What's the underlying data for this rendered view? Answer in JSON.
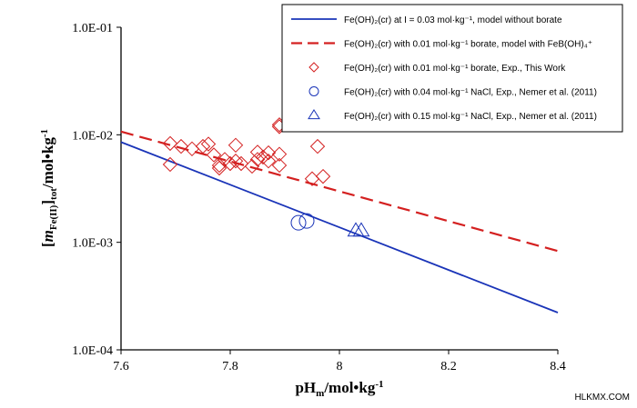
{
  "chart_data": {
    "type": "scatter",
    "x_axis": {
      "range": [
        7.6,
        8.4
      ],
      "ticks": [
        7.6,
        7.8,
        8.0,
        8.2,
        8.4
      ],
      "tick_labels": [
        "7.6",
        "7.8",
        "8",
        "8.2",
        "8.4"
      ],
      "label_main": "pH",
      "label_sub": "m",
      "label_rest": "/mol•kg",
      "label_sup": "-1"
    },
    "y_axis": {
      "scale": "log",
      "range": [
        0.0001,
        0.1
      ],
      "ticks": [
        0.0001,
        0.001,
        0.01,
        0.1
      ],
      "tick_labels": [
        "1.0E-04",
        "1.0E-03",
        "1.0E-02",
        "1.0E-01"
      ],
      "label_open": "[",
      "label_main": "m",
      "label_sub": "Fe(II)",
      "label_close": "]",
      "label_sub2": "tot",
      "label_rest": "/mol•kg",
      "label_sup": "-1"
    },
    "grid": false,
    "legend_position": "top-right",
    "series": [
      {
        "name": "Fe(OH)₂(cr) at I = 0.03 mol·kg⁻¹, model without borate",
        "kind": "line",
        "color": "#1a34b8",
        "dash": "solid",
        "points": [
          [
            7.6,
            0.00855
          ],
          [
            8.4,
            0.000222
          ]
        ]
      },
      {
        "name": "Fe(OH)₂(cr) with 0.01 mol·kg⁻¹ borate, model with FeB(OH)₄⁺",
        "kind": "line",
        "color": "#d42020",
        "dash": "dashed",
        "points": [
          [
            7.6,
            0.0107
          ],
          [
            8.4,
            0.00083
          ]
        ]
      },
      {
        "name": "Fe(OH)₂(cr) with 0.01 mol·kg⁻¹ borate, Exp., This Work",
        "kind": "scatter",
        "marker": "diamond",
        "color": "#d42020",
        "points": [
          [
            7.69,
            0.0083
          ],
          [
            7.69,
            0.0053
          ],
          [
            7.71,
            0.0078
          ],
          [
            7.73,
            0.0074
          ],
          [
            7.75,
            0.0078
          ],
          [
            7.76,
            0.0082
          ],
          [
            7.77,
            0.0065
          ],
          [
            7.78,
            0.0052
          ],
          [
            7.78,
            0.0049
          ],
          [
            7.79,
            0.0059
          ],
          [
            7.8,
            0.0054
          ],
          [
            7.81,
            0.008
          ],
          [
            7.81,
            0.0057
          ],
          [
            7.82,
            0.0054
          ],
          [
            7.84,
            0.0051
          ],
          [
            7.85,
            0.0069
          ],
          [
            7.85,
            0.0059
          ],
          [
            7.86,
            0.0062
          ],
          [
            7.87,
            0.0068
          ],
          [
            7.87,
            0.0057
          ],
          [
            7.89,
            0.0066
          ],
          [
            7.89,
            0.0052
          ],
          [
            7.89,
            0.0119
          ],
          [
            7.89,
            0.0124
          ],
          [
            7.95,
            0.0039
          ],
          [
            7.96,
            0.0078
          ],
          [
            7.97,
            0.0041
          ]
        ]
      },
      {
        "name": "Fe(OH)₂(cr) with 0.04 mol·kg⁻¹ NaCl, Exp., Nemer et al. (2011)",
        "kind": "scatter",
        "marker": "circle",
        "color": "#1a34b8",
        "points": [
          [
            7.925,
            0.00152
          ],
          [
            7.94,
            0.00158
          ]
        ]
      },
      {
        "name": "Fe(OH)₂(cr) with 0.15 mol·kg⁻¹ NaCl, Exp., Nemer et al. (2011)",
        "kind": "scatter",
        "marker": "triangle",
        "color": "#1a34b8",
        "points": [
          [
            8.03,
            0.00127
          ],
          [
            8.04,
            0.00127
          ]
        ]
      }
    ]
  },
  "watermark": "HLKMX.COM"
}
